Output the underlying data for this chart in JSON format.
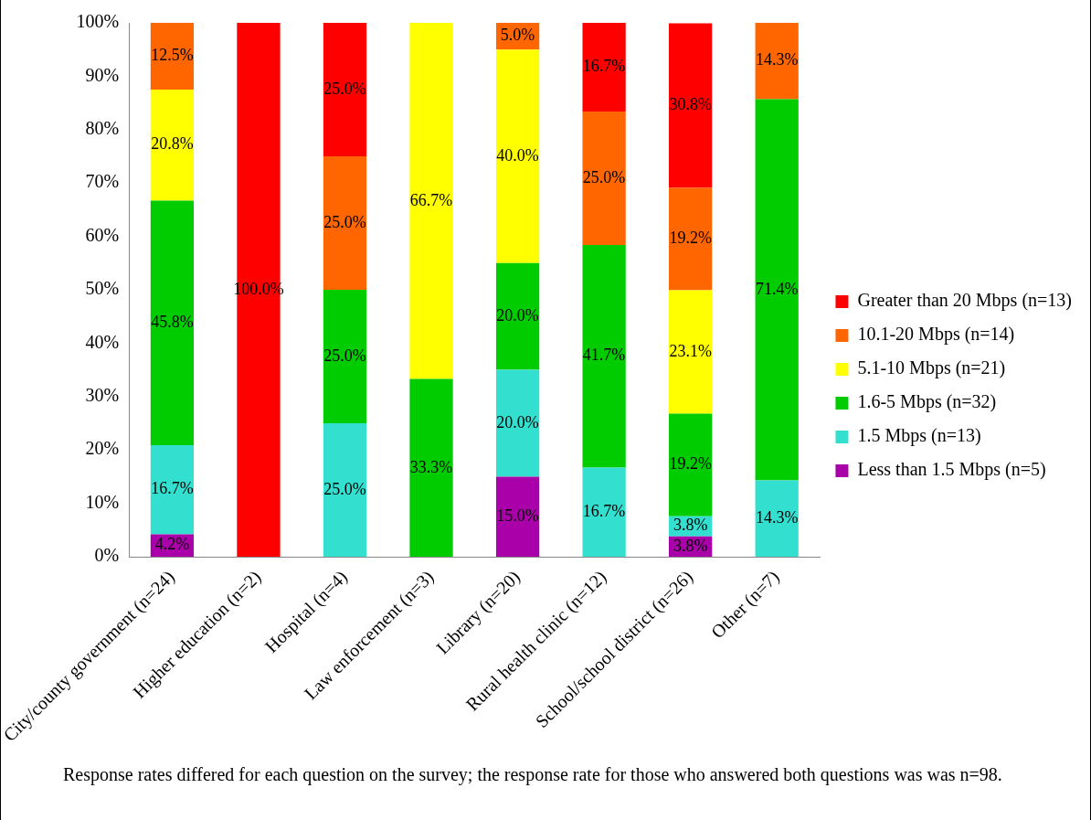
{
  "chart_data": {
    "type": "bar",
    "stacked": true,
    "legend": "right",
    "grid": false,
    "categories": [
      "City/county government (n=24)",
      "Higher education (n=2)",
      "Hospital (n=4)",
      "Law enforcement (n=3)",
      "Library (n=20)",
      "Rural health clinic (n=12)",
      "School/school district (n=26)",
      "Other (n=7)"
    ],
    "ylim": [
      0,
      100
    ],
    "yticks": [
      {
        "value": 0,
        "label": "0%"
      },
      {
        "value": 10,
        "label": "10%"
      },
      {
        "value": 20,
        "label": "20%"
      },
      {
        "value": 30,
        "label": "30%"
      },
      {
        "value": 40,
        "label": "40%"
      },
      {
        "value": 50,
        "label": "50%"
      },
      {
        "value": 60,
        "label": "60%"
      },
      {
        "value": 70,
        "label": "70%"
      },
      {
        "value": 80,
        "label": "80%"
      },
      {
        "value": 90,
        "label": "90%"
      },
      {
        "value": 100,
        "label": "100%"
      }
    ],
    "series": [
      {
        "name": "Less than 1.5 Mbps (n=5)",
        "color": "#aa00aa",
        "values": [
          4.2,
          null,
          null,
          null,
          15.0,
          null,
          3.8,
          null
        ],
        "value_labels": [
          "4.2%",
          null,
          null,
          null,
          "15.0%",
          null,
          "3.8%",
          null
        ]
      },
      {
        "name": "1.5 Mbps (n=13)",
        "color": "#33e0d0",
        "values": [
          16.7,
          null,
          25.0,
          null,
          20.0,
          16.7,
          3.8,
          14.3
        ],
        "value_labels": [
          "16.7%",
          null,
          "25.0%",
          null,
          "20.0%",
          "16.7%",
          "3.8%",
          "14.3%"
        ]
      },
      {
        "name": "1.6-5 Mbps (n=32)",
        "color": "#00cc00",
        "values": [
          45.8,
          null,
          25.0,
          33.3,
          20.0,
          41.7,
          19.2,
          71.4
        ],
        "value_labels": [
          "45.8%",
          null,
          "25.0%",
          "33.3%",
          "20.0%",
          "41.7%",
          "19.2%",
          "71.4%"
        ]
      },
      {
        "name": "5.1-10 Mbps (n=21)",
        "color": "#ffff00",
        "values": [
          20.8,
          null,
          null,
          66.7,
          40.0,
          null,
          23.1,
          null
        ],
        "value_labels": [
          "20.8%",
          null,
          null,
          "66.7%",
          "40.0%",
          null,
          "23.1%",
          null
        ]
      },
      {
        "name": "10.1-20 Mbps (n=14)",
        "color": "#ff6600",
        "values": [
          12.5,
          null,
          25.0,
          null,
          5.0,
          25.0,
          19.2,
          14.3
        ],
        "value_labels": [
          "12.5%",
          null,
          "25.0%",
          null,
          "5.0%",
          "25.0%",
          "19.2%",
          "14.3%"
        ]
      },
      {
        "name": "Greater than 20 Mbps (n=13)",
        "color": "#ff0000",
        "values": [
          null,
          100.0,
          25.0,
          null,
          null,
          16.7,
          30.8,
          null
        ],
        "value_labels": [
          null,
          "100.0%",
          "25.0%",
          null,
          null,
          "16.7%",
          "30.8%",
          null
        ]
      }
    ],
    "annotations": [
      "Response rates differed for each question on the survey; the response rate for those who answered both questions was was n=98."
    ]
  }
}
